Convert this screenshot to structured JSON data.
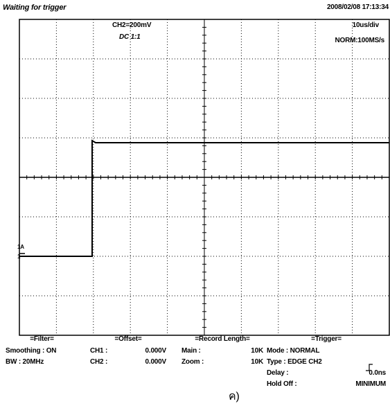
{
  "header": {
    "status": "Waiting for trigger",
    "datetime": "2008/02/08  17:13:34"
  },
  "screen": {
    "channel_scale": "CH2=200mV",
    "coupling": "DC  1:1",
    "time_scale": "10us/div",
    "sample_rate": "NORM:100MS/s",
    "marker_a": "1A",
    "marker_b": "1"
  },
  "panels": [
    {
      "title": "=Filter=",
      "rows": [
        [
          "Smoothing : ON",
          ""
        ],
        [
          "BW : 20MHz",
          ""
        ]
      ]
    },
    {
      "title": "=Offset=",
      "rows": [
        [
          "CH1 :",
          "0.000V"
        ],
        [
          "CH2 :",
          "0.000V"
        ]
      ]
    },
    {
      "title": "=Record Length=",
      "rows": [
        [
          "Main :",
          "10K"
        ],
        [
          "Zoom :",
          "10K"
        ]
      ]
    },
    {
      "title": "=Trigger=",
      "rows": [
        [
          "Mode : NORMAL",
          ""
        ],
        [
          "Type : EDGE CH2",
          ""
        ],
        [
          "Delay :",
          "0.0ns"
        ],
        [
          "Hold Off :",
          "MINIMUM"
        ]
      ]
    }
  ],
  "caption": "ค)"
}
